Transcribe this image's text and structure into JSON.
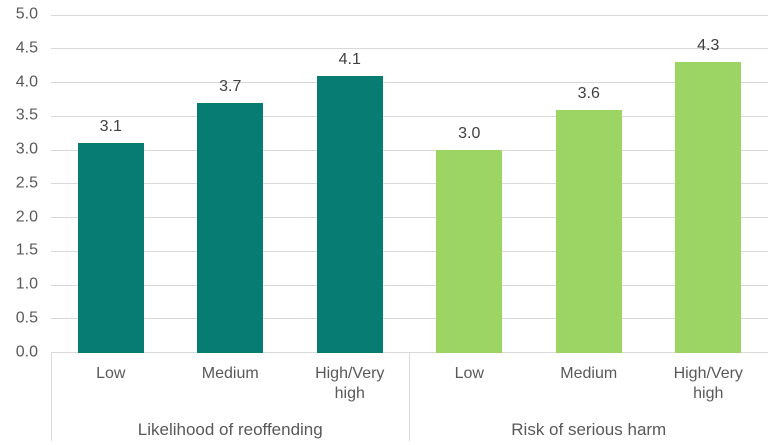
{
  "chart_data": {
    "type": "bar",
    "title": "",
    "ylim": [
      0,
      5
    ],
    "ytick_step": 0.5,
    "yticks": [
      "5.0",
      "4.5",
      "4.0",
      "3.5",
      "3.0",
      "2.5",
      "2.0",
      "1.5",
      "1.0",
      "0.5",
      "0.0"
    ],
    "grid": true,
    "legend_position": "none",
    "groups": [
      {
        "label": "Likelihood of reoffending",
        "color": "#077c72",
        "categories": [
          "Low",
          "Medium",
          "High/Very\nhigh"
        ],
        "values": [
          3.1,
          3.7,
          4.1
        ],
        "value_labels": [
          "3.1",
          "3.7",
          "4.1"
        ]
      },
      {
        "label": "Risk of serious harm",
        "color": "#9cd563",
        "categories": [
          "Low",
          "Medium",
          "High/Very\nhigh"
        ],
        "values": [
          3.0,
          3.6,
          4.3
        ],
        "value_labels": [
          "3.0",
          "3.6",
          "4.3"
        ]
      }
    ]
  },
  "colors": {
    "teal_series": "#077c72",
    "green_series": "#9cd563",
    "gridline": "#d9d9d9",
    "axis_line": "#d9d9d9",
    "separator": "#d9d9d9",
    "tick_text": "#595959",
    "category_text": "#595959",
    "group_text": "#595959",
    "data_label_text": "#404040",
    "background": "#ffffff"
  }
}
